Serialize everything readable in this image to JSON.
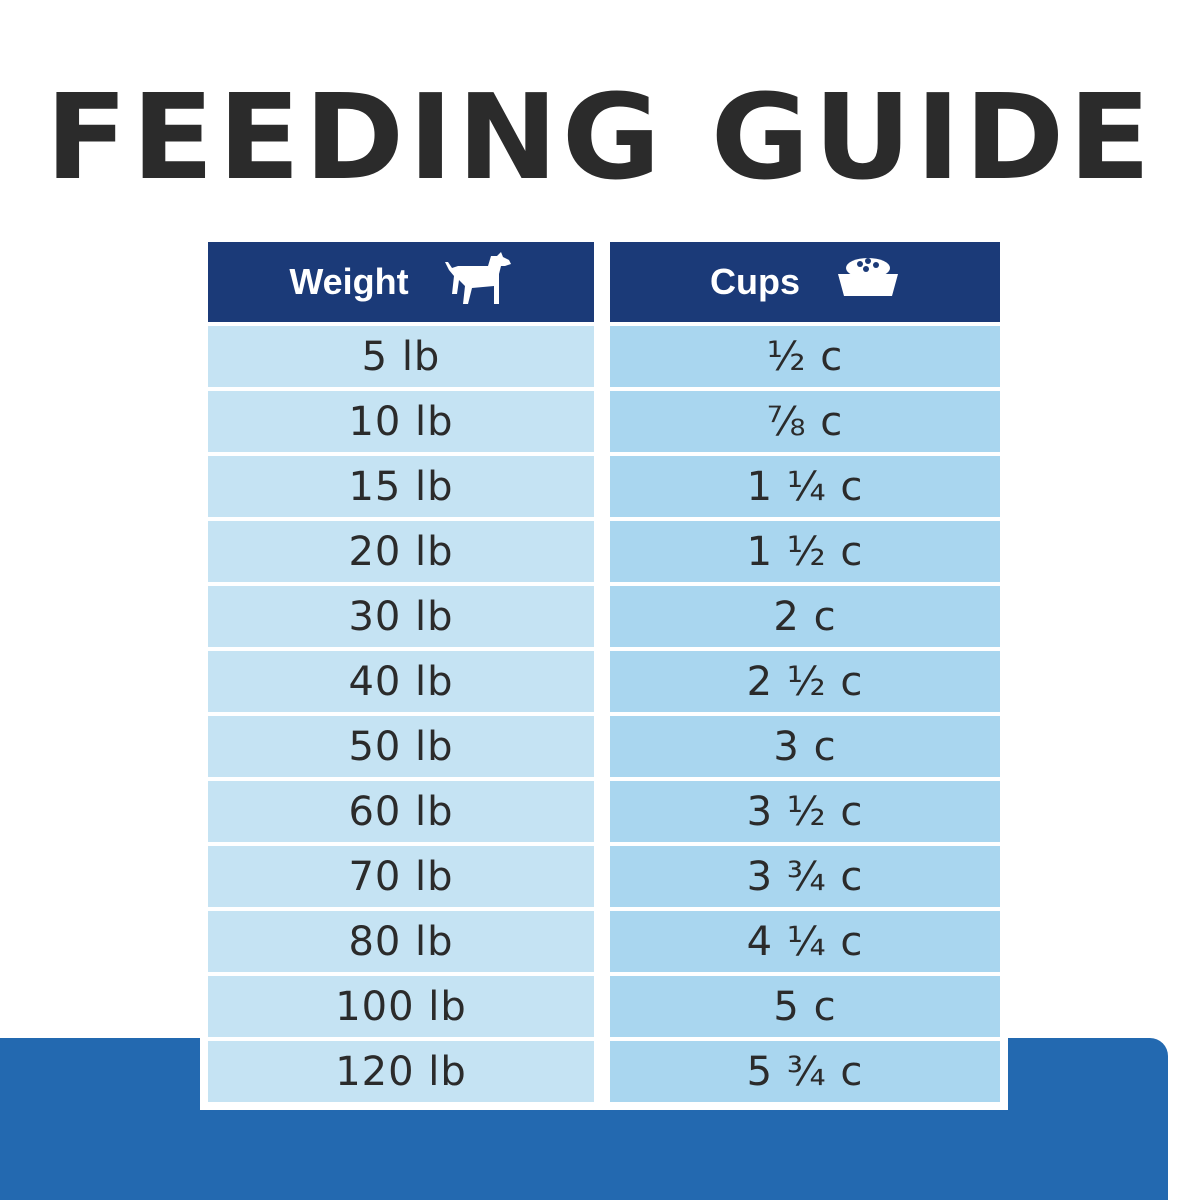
{
  "title": "FEEDING GUIDE",
  "columns": {
    "weight": {
      "label": "Weight",
      "icon": "dog-icon"
    },
    "cups": {
      "label": "Cups",
      "icon": "food-bowl-icon"
    }
  },
  "rows": [
    {
      "weight": "5 lb",
      "cups": "½ c"
    },
    {
      "weight": "10 lb",
      "cups": "⅞ c"
    },
    {
      "weight": "15 lb",
      "cups": "1 ¼ c"
    },
    {
      "weight": "20 lb",
      "cups": "1 ½ c"
    },
    {
      "weight": "30 lb",
      "cups": "2 c"
    },
    {
      "weight": "40 lb",
      "cups": "2 ½ c"
    },
    {
      "weight": "50 lb",
      "cups": "3 c"
    },
    {
      "weight": "60 lb",
      "cups": "3 ½ c"
    },
    {
      "weight": "70 lb",
      "cups": "3 ¾ c"
    },
    {
      "weight": "80 lb",
      "cups": "4 ¼ c"
    },
    {
      "weight": "100 lb",
      "cups": "5 c"
    },
    {
      "weight": "120 lb",
      "cups": "5 ¾ c"
    }
  ],
  "colors": {
    "header": "#1b3a78",
    "weight_cell": "#c5e3f3",
    "cups_cell": "#a9d6ef",
    "band": "#2369b0",
    "title": "#2b2b2b"
  }
}
